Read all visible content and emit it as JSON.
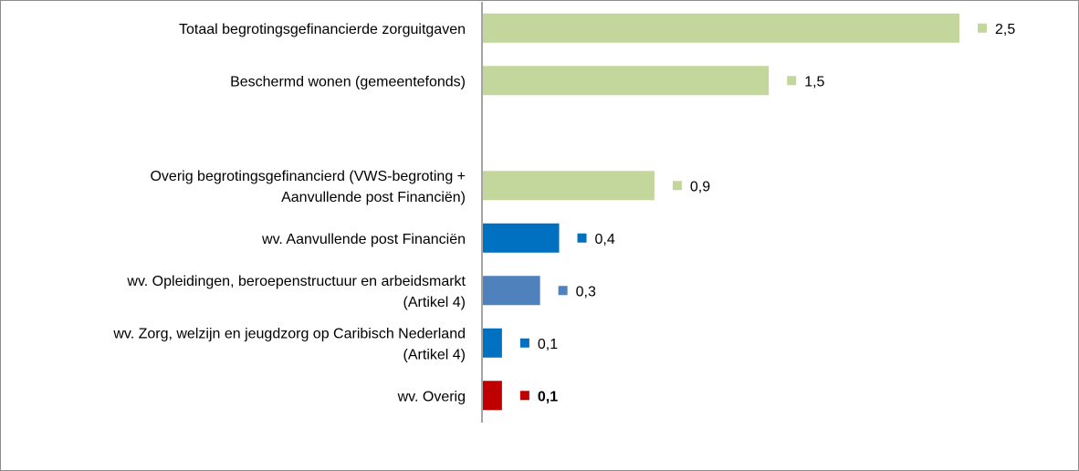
{
  "chart_data": {
    "type": "bar",
    "orientation": "horizontal",
    "title": "",
    "xlabel": "",
    "ylabel": "",
    "xlim": [
      0,
      2.5
    ],
    "grid": false,
    "legend": "none",
    "categories": [
      [
        "Totaal begrotingsgefinancierde zorguitgaven"
      ],
      [
        "Beschermd wonen (gemeentefonds)"
      ],
      [
        ""
      ],
      [
        "Overig begrotingsgefinancierd (VWS-begroting +",
        "Aanvullende post Financiën)"
      ],
      [
        "wv. Aanvullende post Financiën"
      ],
      [
        "wv. Opleidingen, beroepenstructuur en arbeidsmarkt",
        "(Artikel 4)"
      ],
      [
        "wv. Zorg, welzijn en jeugdzorg op Caribisch Nederland",
        "(Artikel 4)"
      ],
      [
        "wv. Overig"
      ]
    ],
    "values": [
      2.5,
      1.5,
      null,
      0.9,
      0.4,
      0.3,
      0.1,
      0.1
    ],
    "value_labels": [
      "2,5",
      "1,5",
      "",
      "0,9",
      "0,4",
      "0,3",
      "0,1",
      "0,1"
    ],
    "bold_labels": [
      false,
      false,
      false,
      false,
      false,
      false,
      false,
      true
    ],
    "colors": [
      "#c3d69b",
      "#c3d69b",
      "",
      "#c3d69b",
      "#0070c0",
      "#4f81bd",
      "#0070c0",
      "#c00000"
    ]
  }
}
